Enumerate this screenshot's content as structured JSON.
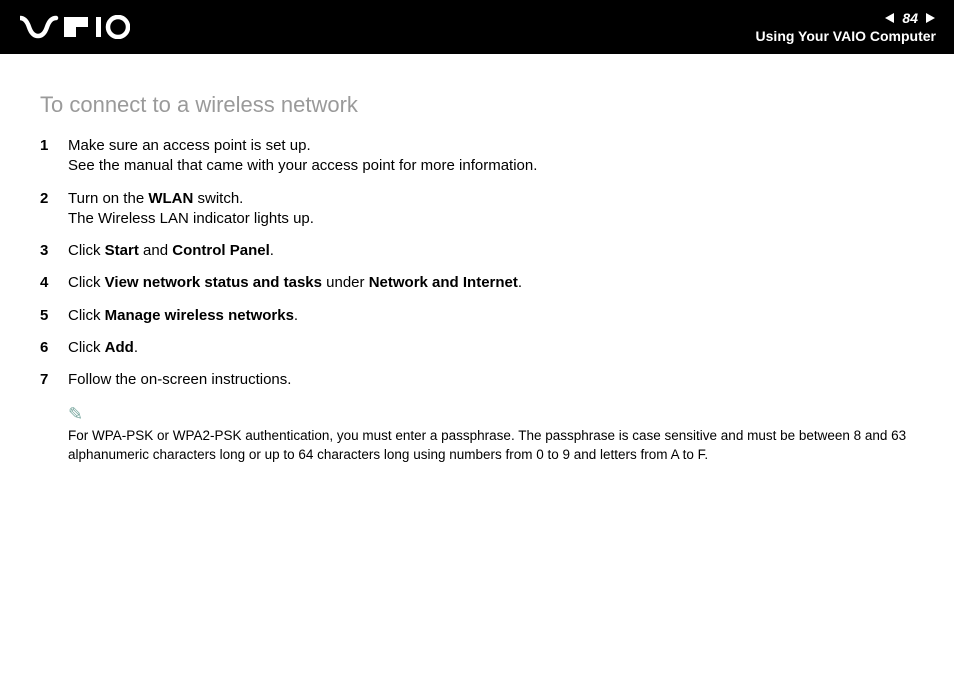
{
  "header": {
    "page_number": "84",
    "title": "Using Your VAIO Computer"
  },
  "section": {
    "title": "To connect to a wireless network"
  },
  "steps": [
    {
      "num": "1",
      "html": "Make sure an access point is set up.<br>See the manual that came with your access point for more information."
    },
    {
      "num": "2",
      "html": "Turn on the <b>WLAN</b> switch.<br>The Wireless LAN indicator lights up."
    },
    {
      "num": "3",
      "html": "Click <b>Start</b> and <b>Control Panel</b>."
    },
    {
      "num": "4",
      "html": "Click <b>View network status and tasks</b> under <b>Network and Internet</b>."
    },
    {
      "num": "5",
      "html": "Click <b>Manage wireless networks</b>."
    },
    {
      "num": "6",
      "html": "Click <b>Add</b>."
    },
    {
      "num": "7",
      "html": "Follow the on-screen instructions."
    }
  ],
  "note": {
    "text": "For WPA-PSK or WPA2-PSK authentication, you must enter a passphrase. The passphrase is case sensitive and must be between 8 and 63 alphanumeric characters long or up to 64 characters long using numbers from 0 to 9 and letters from A to F."
  },
  "colors": {
    "header_bg": "#000000",
    "header_text": "#ffffff",
    "section_title": "#9a9a9a",
    "body_text": "#000000",
    "note_icon": "#7aa8a0",
    "page_bg": "#ffffff"
  },
  "typography": {
    "section_title_size": 22,
    "body_size": 15,
    "note_size": 13.5,
    "header_title_size": 14
  }
}
